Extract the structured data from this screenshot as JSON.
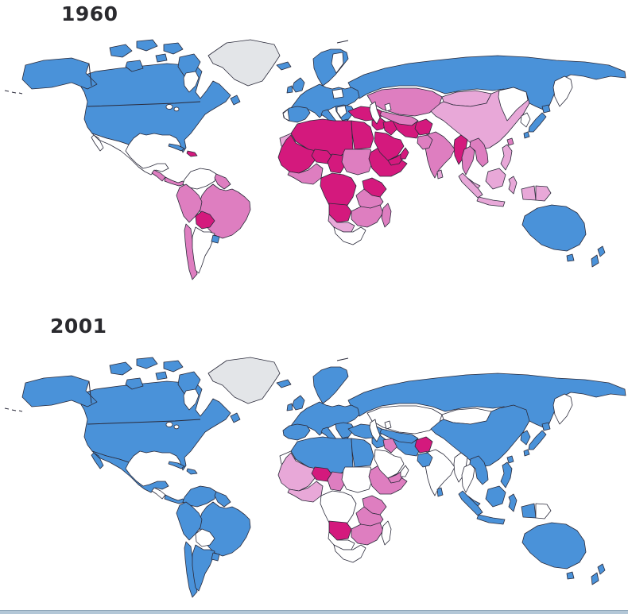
{
  "figure": {
    "type": "choropleth-world-map-pair",
    "top_map_label": "1960",
    "bottom_map_label": "2001"
  },
  "maps": [
    {
      "id": "map-1960",
      "label": "1960",
      "year_key": "fill_1960"
    },
    {
      "id": "map-2001",
      "label": "2001",
      "year_key": "fill_2001"
    }
  ],
  "palette": {
    "blue": "#4a92d9",
    "dark": "#d4197d",
    "mid": "#de7ec0",
    "light": "#e8a8d8",
    "nodata": "#ffffff",
    "gray": "#e3e5e8",
    "water": "#ffffff"
  },
  "map_style": {
    "outline_color": "#2a2a3a",
    "outline_width": "0.8",
    "ocean_color": "#ffffff",
    "scan_edge_color": "#b3c7d7"
  },
  "regions": [
    {
      "name": "russia",
      "fill_1960": "blue",
      "fill_2001": "blue"
    },
    {
      "name": "canada-usa",
      "fill_1960": "blue",
      "fill_2001": "blue"
    },
    {
      "name": "arctic-island-1",
      "fill_1960": "blue",
      "fill_2001": "blue"
    },
    {
      "name": "arctic-island-2",
      "fill_1960": "blue",
      "fill_2001": "blue"
    },
    {
      "name": "arctic-island-3",
      "fill_1960": "blue",
      "fill_2001": "blue"
    },
    {
      "name": "arctic-island-4",
      "fill_1960": "blue",
      "fill_2001": "blue"
    },
    {
      "name": "arctic-island-5",
      "fill_1960": "blue",
      "fill_2001": "blue"
    },
    {
      "name": "arctic-island-6",
      "fill_1960": "blue",
      "fill_2001": "blue"
    },
    {
      "name": "newfoundland",
      "fill_1960": "blue",
      "fill_2001": "blue"
    },
    {
      "name": "greenland",
      "fill_1960": "gray",
      "fill_2001": "gray"
    },
    {
      "name": "alaska",
      "fill_1960": "blue",
      "fill_2001": "blue"
    },
    {
      "name": "hudson-bay",
      "fill_1960": "water",
      "fill_2001": "water"
    },
    {
      "name": "great-lakes",
      "fill_1960": "water",
      "fill_2001": "water"
    },
    {
      "name": "mexico",
      "fill_1960": "nodata",
      "fill_2001": "blue"
    },
    {
      "name": "central-america-north",
      "fill_1960": "mid",
      "fill_2001": "nodata"
    },
    {
      "name": "central-america-south",
      "fill_1960": "mid",
      "fill_2001": "blue"
    },
    {
      "name": "cuba",
      "fill_1960": "blue",
      "fill_2001": "blue"
    },
    {
      "name": "hispaniola",
      "fill_1960": "dark",
      "fill_2001": "blue"
    },
    {
      "name": "colombia-venezuela",
      "fill_1960": "nodata",
      "fill_2001": "blue"
    },
    {
      "name": "guyanas",
      "fill_1960": "mid",
      "fill_2001": "blue"
    },
    {
      "name": "brazil",
      "fill_1960": "mid",
      "fill_2001": "blue"
    },
    {
      "name": "ecuador-peru",
      "fill_1960": "mid",
      "fill_2001": "blue"
    },
    {
      "name": "bolivia",
      "fill_1960": "dark",
      "fill_2001": "nodata"
    },
    {
      "name": "chile",
      "fill_1960": "mid",
      "fill_2001": "blue"
    },
    {
      "name": "argentina",
      "fill_1960": "nodata",
      "fill_2001": "blue"
    },
    {
      "name": "uruguay",
      "fill_1960": "blue",
      "fill_2001": "blue"
    },
    {
      "name": "iceland",
      "fill_1960": "blue",
      "fill_2001": "blue"
    },
    {
      "name": "uk",
      "fill_1960": "blue",
      "fill_2001": "blue"
    },
    {
      "name": "ireland",
      "fill_1960": "blue",
      "fill_2001": "blue"
    },
    {
      "name": "scandinavia",
      "fill_1960": "blue",
      "fill_2001": "blue"
    },
    {
      "name": "scandinavia-nodata",
      "fill_1960": "nodata",
      "fill_2001": "none"
    },
    {
      "name": "europe-mainland",
      "fill_1960": "blue",
      "fill_2001": "blue"
    },
    {
      "name": "poland-nodata",
      "fill_1960": "nodata",
      "fill_2001": "none"
    },
    {
      "name": "iberia",
      "fill_1960": "blue",
      "fill_2001": "blue"
    },
    {
      "name": "portugal-nodata",
      "fill_1960": "nodata",
      "fill_2001": "none"
    },
    {
      "name": "italy",
      "fill_1960": "blue",
      "fill_2001": "blue"
    },
    {
      "name": "balkans",
      "fill_1960": "blue",
      "fill_2001": "blue"
    },
    {
      "name": "balkans-nodata",
      "fill_1960": "nodata",
      "fill_2001": "none"
    },
    {
      "name": "greece",
      "fill_1960": "blue",
      "fill_2001": "blue"
    },
    {
      "name": "morocco",
      "fill_1960": "light",
      "fill_2001": "nodata"
    },
    {
      "name": "algeria-libya",
      "fill_1960": "dark",
      "fill_2001": "blue"
    },
    {
      "name": "egypt",
      "fill_1960": "dark",
      "fill_2001": "blue"
    },
    {
      "name": "west-sahel",
      "fill_1960": "dark",
      "fill_2001": "light"
    },
    {
      "name": "niger",
      "fill_1960": "dark",
      "fill_2001": "dark"
    },
    {
      "name": "chad",
      "fill_1960": "dark",
      "fill_2001": "mid"
    },
    {
      "name": "nigeria-gulf",
      "fill_1960": "mid",
      "fill_2001": "light"
    },
    {
      "name": "sudan",
      "fill_1960": "mid",
      "fill_2001": "nodata"
    },
    {
      "name": "ethiopia-horn",
      "fill_1960": "dark",
      "fill_2001": "mid"
    },
    {
      "name": "central-africa",
      "fill_1960": "dark",
      "fill_2001": "nodata"
    },
    {
      "name": "kenya",
      "fill_1960": "dark",
      "fill_2001": "mid"
    },
    {
      "name": "tanzania",
      "fill_1960": "mid",
      "fill_2001": "mid"
    },
    {
      "name": "angola",
      "fill_1960": "dark",
      "fill_2001": "dark"
    },
    {
      "name": "zambia-mozambique",
      "fill_1960": "mid",
      "fill_2001": "mid"
    },
    {
      "name": "namibia-botswana",
      "fill_1960": "light",
      "fill_2001": "nodata"
    },
    {
      "name": "south-africa",
      "fill_1960": "nodata",
      "fill_2001": "nodata"
    },
    {
      "name": "madagascar",
      "fill_1960": "mid",
      "fill_2001": "nodata"
    },
    {
      "name": "turkey",
      "fill_1960": "dark",
      "fill_2001": "blue"
    },
    {
      "name": "syria-levant",
      "fill_1960": "dark",
      "fill_2001": "blue"
    },
    {
      "name": "iraq",
      "fill_1960": "dark",
      "fill_2001": "mid"
    },
    {
      "name": "saudi-arabia",
      "fill_1960": "dark",
      "fill_2001": "nodata"
    },
    {
      "name": "yemen",
      "fill_1960": "dark",
      "fill_2001": "mid"
    },
    {
      "name": "oman",
      "fill_1960": "dark",
      "fill_2001": "nodata"
    },
    {
      "name": "iran",
      "fill_1960": "dark",
      "fill_2001": "blue"
    },
    {
      "name": "kazakhstan",
      "fill_1960": "mid",
      "fill_2001": "nodata"
    },
    {
      "name": "uzbek-turkmen",
      "fill_1960": "mid",
      "fill_2001": "blue"
    },
    {
      "name": "caspian-sea",
      "fill_1960": "water",
      "fill_2001": "water"
    },
    {
      "name": "aral-sea",
      "fill_1960": "water",
      "fill_2001": "water"
    },
    {
      "name": "afghanistan",
      "fill_1960": "dark",
      "fill_2001": "dark"
    },
    {
      "name": "mongolia",
      "fill_1960": "light",
      "fill_2001": "nodata"
    },
    {
      "name": "china",
      "fill_1960": "light",
      "fill_2001": "blue"
    },
    {
      "name": "manchuria-nodata",
      "fill_1960": "nodata",
      "fill_2001": "none"
    },
    {
      "name": "korea",
      "fill_1960": "nodata",
      "fill_2001": "blue"
    },
    {
      "name": "kamchatka",
      "fill_1960": "nodata",
      "fill_2001": "nodata"
    },
    {
      "name": "japan-hokkaido",
      "fill_1960": "blue",
      "fill_2001": "blue"
    },
    {
      "name": "japan-honshu",
      "fill_1960": "blue",
      "fill_2001": "blue"
    },
    {
      "name": "japan-kyushu",
      "fill_1960": "blue",
      "fill_2001": "blue"
    },
    {
      "name": "taiwan",
      "fill_1960": "mid",
      "fill_2001": "blue"
    },
    {
      "name": "india",
      "fill_1960": "mid",
      "fill_2001": "nodata"
    },
    {
      "name": "pakistan",
      "fill_1960": "mid",
      "fill_2001": "blue"
    },
    {
      "name": "sri-lanka",
      "fill_1960": "light",
      "fill_2001": "blue"
    },
    {
      "name": "myanmar",
      "fill_1960": "dark",
      "fill_2001": "nodata"
    },
    {
      "name": "thailand",
      "fill_1960": "mid",
      "fill_2001": "nodata"
    },
    {
      "name": "vietnam-laos",
      "fill_1960": "mid",
      "fill_2001": "blue"
    },
    {
      "name": "malaysia",
      "fill_1960": "light",
      "fill_2001": "blue"
    },
    {
      "name": "sumatra",
      "fill_1960": "light",
      "fill_2001": "blue"
    },
    {
      "name": "borneo",
      "fill_1960": "light",
      "fill_2001": "blue"
    },
    {
      "name": "java",
      "fill_1960": "light",
      "fill_2001": "blue"
    },
    {
      "name": "sulawesi",
      "fill_1960": "light",
      "fill_2001": "blue"
    },
    {
      "name": "philippines",
      "fill_1960": "light",
      "fill_2001": "blue"
    },
    {
      "name": "newguinea-west",
      "fill_1960": "light",
      "fill_2001": "blue"
    },
    {
      "name": "newguinea-east",
      "fill_1960": "light",
      "fill_2001": "nodata"
    },
    {
      "name": "australia",
      "fill_1960": "blue",
      "fill_2001": "blue"
    },
    {
      "name": "tasmania",
      "fill_1960": "blue",
      "fill_2001": "blue"
    },
    {
      "name": "new-zealand-north",
      "fill_1960": "blue",
      "fill_2001": "blue"
    },
    {
      "name": "new-zealand-south",
      "fill_1960": "blue",
      "fill_2001": "blue"
    }
  ]
}
